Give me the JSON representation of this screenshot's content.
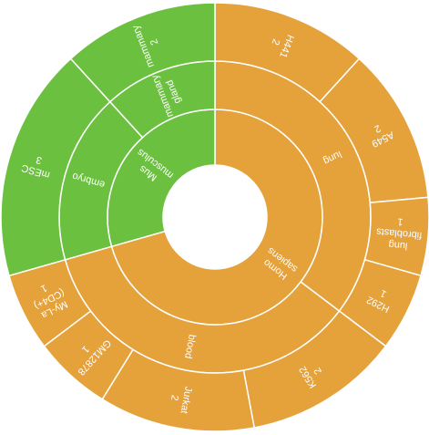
{
  "chart_data": {
    "type": "sunburst",
    "colors": {
      "Homo sapiens": "#E5A13A",
      "Mus musculus": "#6BC13F"
    },
    "children": [
      {
        "name": "Homo sapiens",
        "label": [
          "Homo",
          "sapiens"
        ],
        "children": [
          {
            "name": "lung",
            "label": [
              "lung"
            ],
            "children": [
              {
                "name": "H441",
                "value": 2,
                "label": [
                  "H441",
                  "2"
                ]
              },
              {
                "name": "A549",
                "value": 2,
                "label": [
                  "A549",
                  "2"
                ]
              },
              {
                "name": "lung fibroblasts",
                "value": 1,
                "label": [
                  "lung",
                  "fibroblasts",
                  "1"
                ]
              },
              {
                "name": "H292",
                "value": 1,
                "label": [
                  "H292",
                  "1"
                ]
              }
            ]
          },
          {
            "name": "blood",
            "label": [
              "blood"
            ],
            "children": [
              {
                "name": "K562",
                "value": 2,
                "label": [
                  "K562",
                  "2"
                ]
              },
              {
                "name": "Jurkat",
                "value": 2,
                "label": [
                  "Jurkat",
                  "2"
                ]
              },
              {
                "name": "GM12878",
                "value": 1,
                "label": [
                  "GM12878",
                  "1"
                ]
              },
              {
                "name": "My-La (CD4+)",
                "value": 1,
                "label": [
                  "My-La",
                  "(CD4+)",
                  "1"
                ]
              }
            ]
          }
        ]
      },
      {
        "name": "Mus musculus",
        "label": [
          "Mus",
          "musculus"
        ],
        "children": [
          {
            "name": "embryo",
            "label": [
              "embryo"
            ],
            "children": [
              {
                "name": "mESC",
                "value": 3,
                "label": [
                  "mESC",
                  "3"
                ]
              }
            ]
          },
          {
            "name": "mammary gland",
            "label": [
              "mammary",
              "gland"
            ],
            "children": [
              {
                "name": "mammary",
                "value": 2,
                "label": [
                  "mammary",
                  "2"
                ]
              }
            ]
          }
        ]
      }
    ]
  }
}
